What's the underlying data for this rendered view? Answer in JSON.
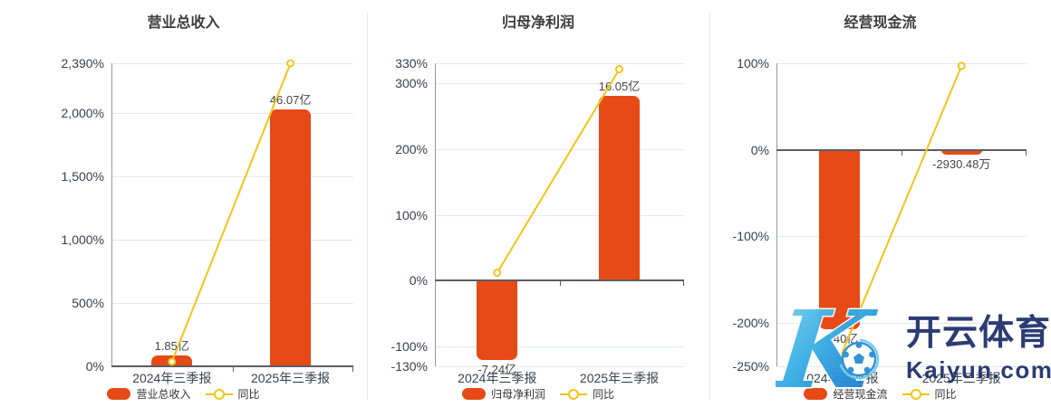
{
  "watermark": {
    "letter": "K",
    "brand_cn": "开云体育",
    "brand_url": "Kaiyun.com",
    "text_color": "#24356e"
  },
  "colors": {
    "bar": "#e64a16",
    "line": "#f3c414",
    "axis": "#5b5d64",
    "grid": "#e3e9f1",
    "tick_label": "#39404e",
    "title": "#3d3d3d",
    "value_label": "#474747"
  },
  "chart_data": [
    {
      "id": "revenue",
      "type": "bar",
      "title": "营业总收入",
      "categories": [
        "2024年三季报",
        "2025年三季报"
      ],
      "series": [
        {
          "name": "营业总收入",
          "type": "bar",
          "unit": "亿",
          "values": [
            1.85,
            46.07
          ],
          "values_label": [
            "1.85亿",
            "46.07亿"
          ],
          "values_axis_pct": [
            86,
            2026
          ]
        },
        {
          "name": "同比",
          "type": "line",
          "values_pct": [
            36,
            2390
          ]
        }
      ],
      "value_label_side": [
        "above",
        "above"
      ],
      "y_axis": {
        "min": 0,
        "max": 2390,
        "ticks": [
          {
            "label": "0%",
            "value": 0
          },
          {
            "label": "500%",
            "value": 500
          },
          {
            "label": "1,000%",
            "value": 1000
          },
          {
            "label": "1,500%",
            "value": 1500
          },
          {
            "label": "2,000%",
            "value": 2000
          },
          {
            "label": "2,390%",
            "value": 2390
          }
        ]
      },
      "legend_position": "bottom",
      "grid": true
    },
    {
      "id": "net-profit",
      "type": "bar",
      "title": "归母净利润",
      "categories": [
        "2024年三季报",
        "2025年三季报"
      ],
      "series": [
        {
          "name": "归母净利润",
          "type": "bar",
          "unit": "亿",
          "values": [
            -7.24,
            16.05
          ],
          "values_label": [
            "-7.24亿",
            "16.05亿"
          ],
          "values_axis_pct": [
            -120,
            280
          ]
        },
        {
          "name": "同比",
          "type": "line",
          "values_pct": [
            12,
            321
          ]
        }
      ],
      "value_label_side": [
        "below",
        "above"
      ],
      "y_axis": {
        "min": -130,
        "max": 330,
        "ticks": [
          {
            "label": "-130%",
            "value": -130
          },
          {
            "label": "-100%",
            "value": -100
          },
          {
            "label": "0%",
            "value": 0
          },
          {
            "label": "100%",
            "value": 100
          },
          {
            "label": "200%",
            "value": 200
          },
          {
            "label": "300%",
            "value": 300
          },
          {
            "label": "330%",
            "value": 330
          }
        ]
      },
      "legend_position": "bottom",
      "grid": true
    },
    {
      "id": "operating-cash-flow",
      "type": "bar",
      "title": "经营现金流",
      "categories": [
        "2024年三季报",
        "2025年三季报"
      ],
      "series": [
        {
          "name": "经营现金流",
          "type": "bar",
          "unit": "亿",
          "values": [
            -8.4,
            -0.293048
          ],
          "values_label": [
            "-8.40亿",
            "-2930.48万"
          ],
          "values_axis_pct": [
            -207,
            -6
          ]
        },
        {
          "name": "同比",
          "type": "line",
          "values_pct": [
            -243,
            97
          ]
        }
      ],
      "value_label_side": [
        "below",
        "below"
      ],
      "y_axis": {
        "min": -250,
        "max": 100,
        "ticks": [
          {
            "label": "-250%",
            "value": -250
          },
          {
            "label": "-200%",
            "value": -200
          },
          {
            "label": "-100%",
            "value": -100
          },
          {
            "label": "0%",
            "value": 0
          },
          {
            "label": "100%",
            "value": 100
          }
        ]
      },
      "legend_position": "bottom",
      "grid": true
    }
  ]
}
